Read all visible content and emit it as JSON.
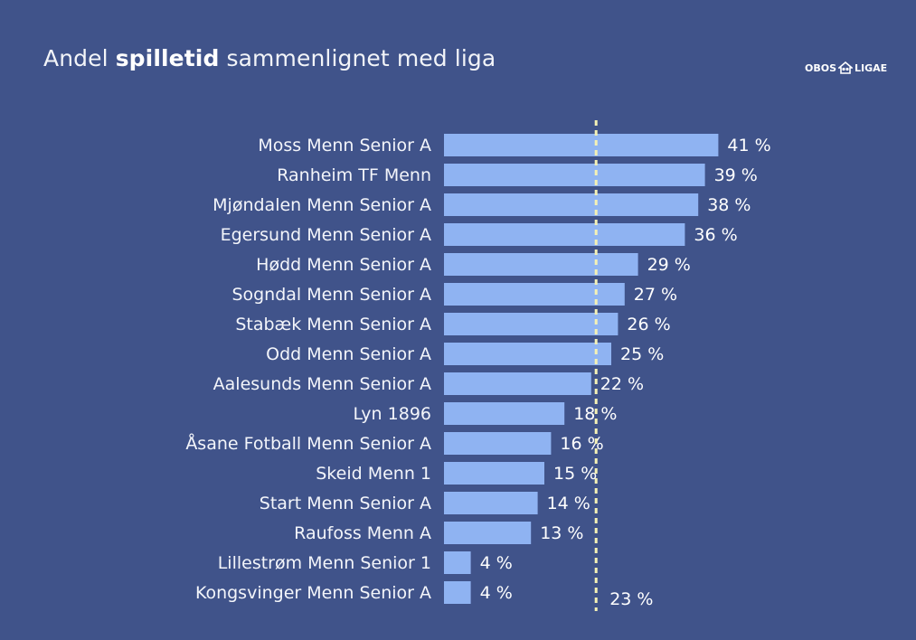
{
  "title": {
    "prefix": "Andel ",
    "bold": "spilletid",
    "suffix": " sammenlignet med liga"
  },
  "logo": {
    "left_text": "OBOS",
    "icon": "obos-house-icon",
    "right_text": "LIGAE"
  },
  "colors": {
    "background": "#40538a",
    "bar": "#8fb3f2",
    "reference_line": "#f4f1b6"
  },
  "chart_data": {
    "type": "bar",
    "orientation": "horizontal",
    "categories": [
      "Moss Menn Senior A",
      "Ranheim TF Menn",
      "Mjøndalen Menn Senior A",
      "Egersund Menn Senior A",
      "Hødd Menn Senior A",
      "Sogndal Menn Senior A",
      "Stabæk Menn Senior A",
      "Odd Menn Senior A",
      "Aalesunds Menn Senior A",
      "Lyn 1896",
      "Åsane Fotball Menn Senior A",
      "Skeid Menn 1",
      "Start Menn Senior A",
      "Raufoss Menn A",
      "Lillestrøm Menn Senior 1",
      "Kongsvinger Menn Senior A"
    ],
    "values": [
      41,
      39,
      38,
      36,
      29,
      27,
      26,
      25,
      22,
      18,
      16,
      15,
      14,
      13,
      4,
      4
    ],
    "value_labels": [
      "41 %",
      "39 %",
      "38 %",
      "36 %",
      "29 %",
      "27 %",
      "26 %",
      "25 %",
      "22 %",
      "18 %",
      "16 %",
      "15 %",
      "14 %",
      "13 %",
      "4 %",
      "4 %"
    ],
    "reference_line": {
      "value": 23,
      "label": "23 %"
    },
    "unit": "%",
    "xlim": [
      0,
      41
    ],
    "grid": false,
    "legend": "none"
  }
}
